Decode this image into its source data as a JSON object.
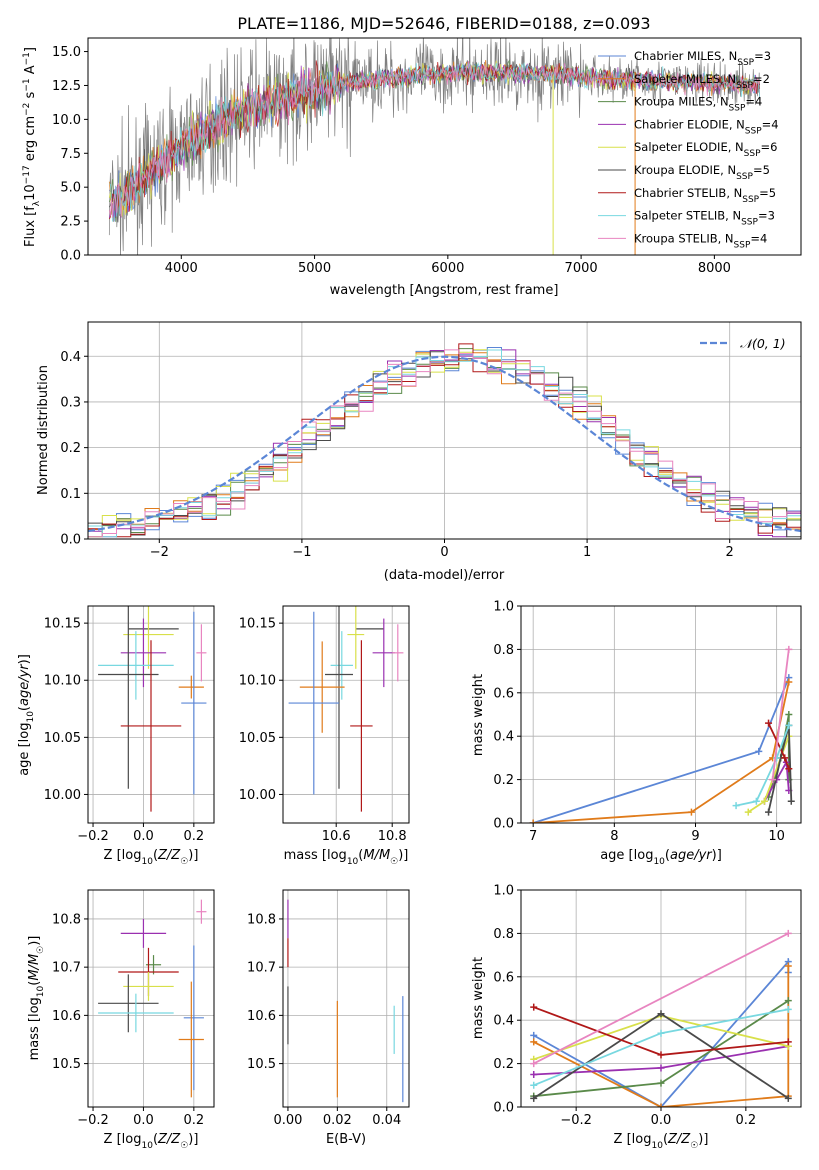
{
  "figure": {
    "title": "PLATE=1186, MJD=52646, FIBERID=0188, z=0.093"
  },
  "colors": {
    "c0": "#5b86d6",
    "c1": "#e07b1a",
    "c2": "#5a8a4a",
    "c3": "#9a30b0",
    "c4": "#d8e04a",
    "c5": "#4a4a4a",
    "c6": "#b01818",
    "c7": "#78d8e0",
    "c8": "#e885c0",
    "spectrum": "#808080"
  },
  "chart_data": [
    {
      "id": "spectrum",
      "type": "line",
      "xlabel": "wavelength [Angstrom, rest frame]",
      "ylabel": "Flux [f_λ 10^-17 erg cm^-2 s^-1 A^-1]",
      "xlim": [
        3300,
        8650
      ],
      "ylim": [
        0,
        16
      ],
      "xticks": [
        "4000",
        "5000",
        "6000",
        "7000",
        "8000"
      ],
      "yticks": [
        "0.0",
        "2.5",
        "5.0",
        "7.5",
        "10.0",
        "12.5",
        "15.0"
      ],
      "legend": {
        "placement": "top-right",
        "entries": [
          "Chabrier MILES, N_SSP=3",
          "Salpeter MILES, N_SSP=2",
          "Kroupa MILES, N_SSP=4",
          "Chabrier ELODIE, N_SSP=4",
          "Salpeter ELODIE, N_SSP=6",
          "Kroupa ELODIE, N_SSP=5",
          "Chabrier STELIB, N_SSP=5",
          "Salpeter STELIB, N_SSP=3",
          "Kroupa STELIB, N_SSP=4"
        ]
      },
      "model_continuum": {
        "x": [
          3450,
          3600,
          3800,
          4000,
          4200,
          4400,
          4600,
          4800,
          5000,
          5200,
          5400,
          5600,
          5800,
          6000,
          6200,
          6400,
          6600,
          6800,
          7000,
          7200,
          7400
        ],
        "y": [
          3.6,
          4.6,
          6.3,
          7.9,
          9.3,
          10.4,
          11.1,
          11.7,
          12.2,
          12.6,
          12.9,
          13.1,
          13.3,
          13.4,
          13.5,
          13.5,
          13.4,
          13.3,
          13.2,
          13.0,
          12.9
        ]
      }
    },
    {
      "id": "residuals",
      "type": "area",
      "xlabel": "(data-model)/error",
      "ylabel": "Normed distribution",
      "xlim": [
        -2.5,
        2.5
      ],
      "ylim": [
        0,
        0.475
      ],
      "xticks": [
        "-2",
        "-1",
        "0",
        "1",
        "2"
      ],
      "yticks": [
        "0.0",
        "0.1",
        "0.2",
        "0.3",
        "0.4"
      ],
      "grid": true,
      "legend": {
        "placement": "top-right",
        "entries": [
          "𝒩(0, 1)"
        ]
      },
      "bin_width": 0.1,
      "reference_curve": "N(0,1)"
    },
    {
      "id": "age-vs-Z",
      "type": "scatter",
      "xlabel": "Z [log10(Z/Z☉)]",
      "ylabel": "age  [log10(age/yr)]",
      "xlim": [
        -0.22,
        0.28
      ],
      "ylim": [
        9.975,
        10.165
      ],
      "xticks": [
        "-0.2",
        "0.0",
        "0.2"
      ],
      "yticks": [
        "10.00",
        "10.05",
        "10.10",
        "10.15"
      ],
      "grid": true,
      "points": [
        {
          "x": 0.04,
          "y": 10.145,
          "xerr": 0.1,
          "yerr": 0.0,
          "c": "c5"
        },
        {
          "x": 0.02,
          "y": 10.14,
          "xerr": 0.1,
          "yerr": 0.03,
          "c": "c4"
        },
        {
          "x": 0.0,
          "y": 10.124,
          "xerr": 0.09,
          "yerr": 0.03,
          "c": "c3"
        },
        {
          "x": 0.23,
          "y": 10.124,
          "xerr": 0.02,
          "yerr": 0.025,
          "c": "c8"
        },
        {
          "x": -0.03,
          "y": 10.113,
          "xerr": 0.15,
          "yerr": 0.03,
          "c": "c7"
        },
        {
          "x": -0.06,
          "y": 10.105,
          "xerr": 0.12,
          "yerr": 0.1,
          "c": "c5"
        },
        {
          "x": 0.19,
          "y": 10.094,
          "xerr": 0.05,
          "yerr": 0.01,
          "c": "c1"
        },
        {
          "x": 0.2,
          "y": 10.08,
          "xerr": 0.05,
          "yerr": 0.08,
          "c": "c0"
        },
        {
          "x": 0.03,
          "y": 10.06,
          "xerr": 0.12,
          "yerr": 0.075,
          "c": "c6"
        }
      ]
    },
    {
      "id": "age-vs-mass",
      "type": "scatter",
      "xlabel": "mass [log10(M/M☉)]",
      "ylabel": "",
      "xlim": [
        10.41,
        10.86
      ],
      "ylim": [
        9.975,
        10.165
      ],
      "xticks": [
        "10.6",
        "10.8"
      ],
      "yticks": [
        "10.00",
        "10.05",
        "10.10",
        "10.15"
      ],
      "grid": true,
      "points": [
        {
          "x": 10.72,
          "y": 10.145,
          "xerr": 0.05,
          "yerr": 0.0,
          "c": "c5"
        },
        {
          "x": 10.67,
          "y": 10.14,
          "xerr": 0.03,
          "yerr": 0.03,
          "c": "c4"
        },
        {
          "x": 10.77,
          "y": 10.124,
          "xerr": 0.04,
          "yerr": 0.03,
          "c": "c3"
        },
        {
          "x": 10.82,
          "y": 10.124,
          "xerr": 0.02,
          "yerr": 0.025,
          "c": "c8"
        },
        {
          "x": 10.62,
          "y": 10.113,
          "xerr": 0.04,
          "yerr": 0.03,
          "c": "c7"
        },
        {
          "x": 10.61,
          "y": 10.105,
          "xerr": 0.05,
          "yerr": 0.1,
          "c": "c5"
        },
        {
          "x": 10.55,
          "y": 10.094,
          "xerr": 0.08,
          "yerr": 0.04,
          "c": "c1"
        },
        {
          "x": 10.52,
          "y": 10.08,
          "xerr": 0.09,
          "yerr": 0.08,
          "c": "c0"
        },
        {
          "x": 10.69,
          "y": 10.06,
          "xerr": 0.04,
          "yerr": 0.075,
          "c": "c6"
        }
      ]
    },
    {
      "id": "massweight-vs-age",
      "type": "line",
      "xlabel": "age  [log10(age/yr)]",
      "ylabel": "mass weight",
      "xlim": [
        6.85,
        10.3
      ],
      "ylim": [
        0,
        1
      ],
      "xticks": [
        "7",
        "8",
        "9",
        "10"
      ],
      "yticks": [
        "0.0",
        "0.2",
        "0.4",
        "0.6",
        "0.8",
        "1.0"
      ],
      "grid": true,
      "series": [
        {
          "c": "c0",
          "x": [
            7.0,
            9.78,
            10.15
          ],
          "y": [
            0.0,
            0.33,
            0.67
          ]
        },
        {
          "c": "c1",
          "x": [
            7.0,
            8.95,
            9.95,
            10.15
          ],
          "y": [
            0.0,
            0.05,
            0.3,
            0.65
          ]
        },
        {
          "c": "c2",
          "x": [
            9.9,
            10.05,
            10.15,
            10.15
          ],
          "y": [
            0.12,
            0.3,
            0.5,
            0.2
          ]
        },
        {
          "c": "c3",
          "x": [
            9.85,
            10.0,
            10.12,
            10.15
          ],
          "y": [
            0.1,
            0.2,
            0.28,
            0.15
          ]
        },
        {
          "c": "c4",
          "x": [
            9.65,
            9.85,
            10.05,
            10.15
          ],
          "y": [
            0.05,
            0.1,
            0.3,
            0.4
          ]
        },
        {
          "c": "c5",
          "x": [
            9.9,
            10.05,
            10.15,
            10.18
          ],
          "y": [
            0.05,
            0.3,
            0.45,
            0.1
          ]
        },
        {
          "c": "c6",
          "x": [
            9.9,
            10.1,
            10.15
          ],
          "y": [
            0.46,
            0.3,
            0.25
          ]
        },
        {
          "c": "c7",
          "x": [
            9.5,
            9.75,
            10.0,
            10.15
          ],
          "y": [
            0.08,
            0.1,
            0.3,
            0.45
          ]
        },
        {
          "c": "c8",
          "x": [
            9.95,
            10.15
          ],
          "y": [
            0.2,
            0.8
          ]
        }
      ]
    },
    {
      "id": "mass-vs-Z",
      "type": "scatter",
      "xlabel": "Z [log10(Z/Z☉)]",
      "ylabel": "mass [log10(M/M☉)]",
      "xlim": [
        -0.22,
        0.28
      ],
      "ylim": [
        10.41,
        10.86
      ],
      "xticks": [
        "-0.2",
        "0.0",
        "0.2"
      ],
      "yticks": [
        "10.5",
        "10.6",
        "10.7",
        "10.8"
      ],
      "grid": true,
      "points": [
        {
          "x": 0.23,
          "y": 10.815,
          "xerr": 0.02,
          "yerr": 0.025,
          "c": "c8"
        },
        {
          "x": 0.0,
          "y": 10.77,
          "xerr": 0.09,
          "yerr": 0.03,
          "c": "c3"
        },
        {
          "x": 0.04,
          "y": 10.705,
          "xerr": 0.03,
          "yerr": 0.02,
          "c": "c2"
        },
        {
          "x": 0.02,
          "y": 10.69,
          "xerr": 0.12,
          "yerr": 0.05,
          "c": "c6"
        },
        {
          "x": 0.02,
          "y": 10.66,
          "xerr": 0.1,
          "yerr": 0.03,
          "c": "c4"
        },
        {
          "x": -0.06,
          "y": 10.625,
          "xerr": 0.12,
          "yerr": 0.06,
          "c": "c5"
        },
        {
          "x": -0.03,
          "y": 10.605,
          "xerr": 0.15,
          "yerr": 0.04,
          "c": "c7"
        },
        {
          "x": 0.2,
          "y": 10.595,
          "xerr": 0.04,
          "yerr": 0.15,
          "c": "c0"
        },
        {
          "x": 0.19,
          "y": 10.55,
          "xerr": 0.05,
          "yerr": 0.12,
          "c": "c1"
        }
      ]
    },
    {
      "id": "mass-vs-ebv",
      "type": "scatter",
      "xlabel": "E(B-V)",
      "ylabel": "",
      "xlim": [
        -0.002,
        0.049
      ],
      "ylim": [
        10.41,
        10.86
      ],
      "xticks": [
        "0.00",
        "0.02",
        "0.04"
      ],
      "yticks": [
        "10.5",
        "10.6",
        "10.7",
        "10.8"
      ],
      "grid": true,
      "points": [
        {
          "x": 0.0,
          "y": 10.8,
          "xerr": 0.0,
          "yerr": 0.04,
          "c": "c3"
        },
        {
          "x": 0.0,
          "y": 10.73,
          "xerr": 0.0,
          "yerr": 0.03,
          "c": "c6"
        },
        {
          "x": 0.0,
          "y": 10.6,
          "xerr": 0.0,
          "yerr": 0.06,
          "c": "c5"
        },
        {
          "x": 0.02,
          "y": 10.53,
          "xerr": 0.0,
          "yerr": 0.1,
          "c": "c1"
        },
        {
          "x": 0.043,
          "y": 10.57,
          "xerr": 0.0,
          "yerr": 0.05,
          "c": "c7"
        },
        {
          "x": 0.0465,
          "y": 10.53,
          "xerr": 0.0,
          "yerr": 0.11,
          "c": "c0"
        }
      ]
    },
    {
      "id": "massweight-vs-Z",
      "type": "line",
      "xlabel": "Z [log10(Z/Z☉)]",
      "ylabel": "mass weight",
      "xlim": [
        -0.33,
        0.33
      ],
      "ylim": [
        0,
        1
      ],
      "xticks": [
        "-0.2",
        "0.0",
        "0.2"
      ],
      "yticks": [
        "0.0",
        "0.2",
        "0.4",
        "0.6",
        "0.8",
        "1.0"
      ],
      "grid": true,
      "series": [
        {
          "c": "c0",
          "x": [
            -0.3,
            0.0,
            0.3,
            0.3
          ],
          "y": [
            0.33,
            0.0,
            0.67,
            0.62
          ]
        },
        {
          "c": "c1",
          "x": [
            -0.3,
            0.0,
            0.3,
            0.3
          ],
          "y": [
            0.3,
            0.0,
            0.05,
            0.65
          ]
        },
        {
          "c": "c2",
          "x": [
            -0.3,
            0.0,
            0.3
          ],
          "y": [
            0.05,
            0.11,
            0.49
          ]
        },
        {
          "c": "c3",
          "x": [
            -0.3,
            0.0,
            0.3
          ],
          "y": [
            0.15,
            0.18,
            0.28
          ]
        },
        {
          "c": "c4",
          "x": [
            -0.3,
            0.0,
            0.3
          ],
          "y": [
            0.22,
            0.42,
            0.28
          ]
        },
        {
          "c": "c5",
          "x": [
            -0.3,
            0.0,
            0.3
          ],
          "y": [
            0.04,
            0.43,
            0.04
          ]
        },
        {
          "c": "c6",
          "x": [
            -0.3,
            0.0,
            0.3
          ],
          "y": [
            0.46,
            0.24,
            0.3
          ]
        },
        {
          "c": "c7",
          "x": [
            -0.3,
            0.0,
            0.3
          ],
          "y": [
            0.1,
            0.34,
            0.45
          ]
        },
        {
          "c": "c8",
          "x": [
            -0.3,
            0.3
          ],
          "y": [
            0.2,
            0.8
          ]
        }
      ]
    }
  ]
}
